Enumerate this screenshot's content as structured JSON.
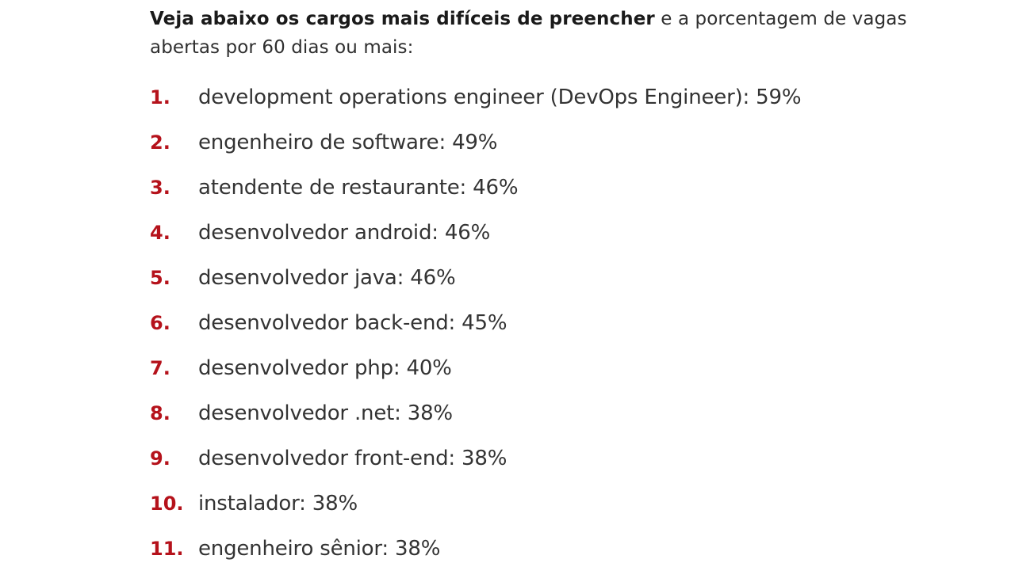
{
  "intro": {
    "bold": "Veja abaixo os cargos mais difíceis de preencher",
    "rest": " e a porcentagem de vagas abertas por 60 dias ou mais:"
  },
  "ranking": [
    {
      "number": "1.",
      "text": "development operations engineer (DevOps Engineer): 59%"
    },
    {
      "number": "2.",
      "text": "engenheiro de software: 49%"
    },
    {
      "number": "3.",
      "text": "atendente de restaurante: 46%"
    },
    {
      "number": "4.",
      "text": "desenvolvedor android: 46%"
    },
    {
      "number": "5.",
      "text": "desenvolvedor java: 46%"
    },
    {
      "number": "6.",
      "text": "desenvolvedor back-end: 45%"
    },
    {
      "number": "7.",
      "text": "desenvolvedor php: 40%"
    },
    {
      "number": "8.",
      "text": "desenvolvedor .net: 38%"
    },
    {
      "number": "9.",
      "text": "desenvolvedor front-end: 38%"
    },
    {
      "number": "10.",
      "text": "instalador: 38%"
    },
    {
      "number": "11.",
      "text": "engenheiro sênior: 38%"
    }
  ],
  "colors": {
    "accent": "#b5121b",
    "text": "#333333"
  }
}
